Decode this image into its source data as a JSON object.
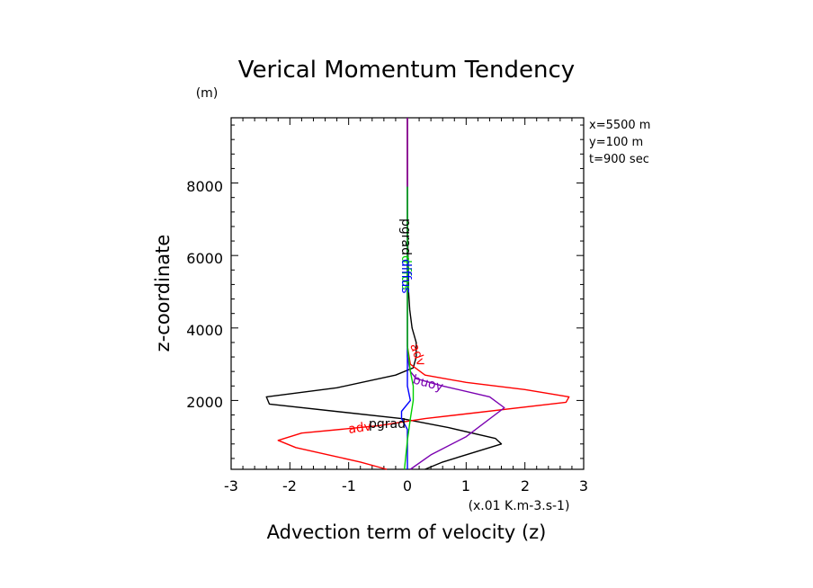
{
  "chart_data": {
    "type": "line",
    "title": "Verical Momentum Tendency",
    "xlabel": "Advection term of velocity (z)",
    "ylabel": "z-coordinate",
    "x_unit": "(x.01 K.m-3.s-1)",
    "y_unit": "(m)",
    "xlim": [
      -3,
      3
    ],
    "ylim": [
      100,
      9800
    ],
    "xticks": [
      "-3",
      "-2",
      "-1",
      "0",
      "1",
      "2",
      "3"
    ],
    "yticks": [
      "2000",
      "4000",
      "6000",
      "8000"
    ],
    "info": [
      "x=5500 m",
      "y=100 m",
      "t=900 sec"
    ],
    "grid": false,
    "series": [
      {
        "name": "pgrad",
        "color": "#000000",
        "points": [
          [
            0.3,
            100
          ],
          [
            0.6,
            300
          ],
          [
            1.6,
            800
          ],
          [
            1.5,
            950
          ],
          [
            0.7,
            1250
          ],
          [
            -0.1,
            1500
          ],
          [
            -2.35,
            1900
          ],
          [
            -2.4,
            2100
          ],
          [
            -1.2,
            2350
          ],
          [
            -0.2,
            2700
          ],
          [
            0.1,
            2900
          ],
          [
            0.15,
            3200
          ],
          [
            0.15,
            3600
          ],
          [
            0.08,
            4000
          ],
          [
            0.04,
            4500
          ],
          [
            0.02,
            5000
          ],
          [
            0.01,
            6000
          ],
          [
            0.0,
            7000
          ],
          [
            0.0,
            8000
          ],
          [
            0.0,
            9800
          ]
        ]
      },
      {
        "name": "adv",
        "color": "#ff0000",
        "points": [
          [
            -0.35,
            100
          ],
          [
            -0.8,
            300
          ],
          [
            -1.9,
            700
          ],
          [
            -2.2,
            900
          ],
          [
            -1.8,
            1100
          ],
          [
            -0.5,
            1300
          ],
          [
            0.3,
            1500
          ],
          [
            2.7,
            1950
          ],
          [
            2.75,
            2100
          ],
          [
            2.0,
            2300
          ],
          [
            1.0,
            2500
          ],
          [
            0.3,
            2700
          ],
          [
            0.05,
            3000
          ],
          [
            0.0,
            3500
          ],
          [
            0.0,
            4000
          ],
          [
            0.0,
            9800
          ]
        ]
      },
      {
        "name": "buoy",
        "color": "#7a00b0",
        "points": [
          [
            0.05,
            100
          ],
          [
            0.4,
            500
          ],
          [
            1.0,
            1000
          ],
          [
            1.65,
            1800
          ],
          [
            1.4,
            2100
          ],
          [
            0.6,
            2400
          ],
          [
            0.15,
            2600
          ],
          [
            0.05,
            2800
          ],
          [
            0.0,
            3200
          ],
          [
            0.0,
            9800
          ]
        ]
      },
      {
        "name": "diffus",
        "color": "#0000ff",
        "points": [
          [
            0.0,
            100
          ],
          [
            0.0,
            1200
          ],
          [
            -0.1,
            1500
          ],
          [
            -0.1,
            1700
          ],
          [
            0.05,
            2000
          ],
          [
            0.0,
            2400
          ],
          [
            0.0,
            4000
          ],
          [
            0.0,
            5000
          ],
          [
            0.0,
            7900
          ]
        ]
      },
      {
        "name": "diffus",
        "color": "#00d000",
        "points": [
          [
            -0.05,
            100
          ],
          [
            0.0,
            900
          ],
          [
            0.05,
            1500
          ],
          [
            0.1,
            2000
          ],
          [
            0.1,
            2400
          ],
          [
            0.05,
            2800
          ],
          [
            0.0,
            3500
          ],
          [
            0.0,
            7900
          ]
        ]
      }
    ]
  }
}
